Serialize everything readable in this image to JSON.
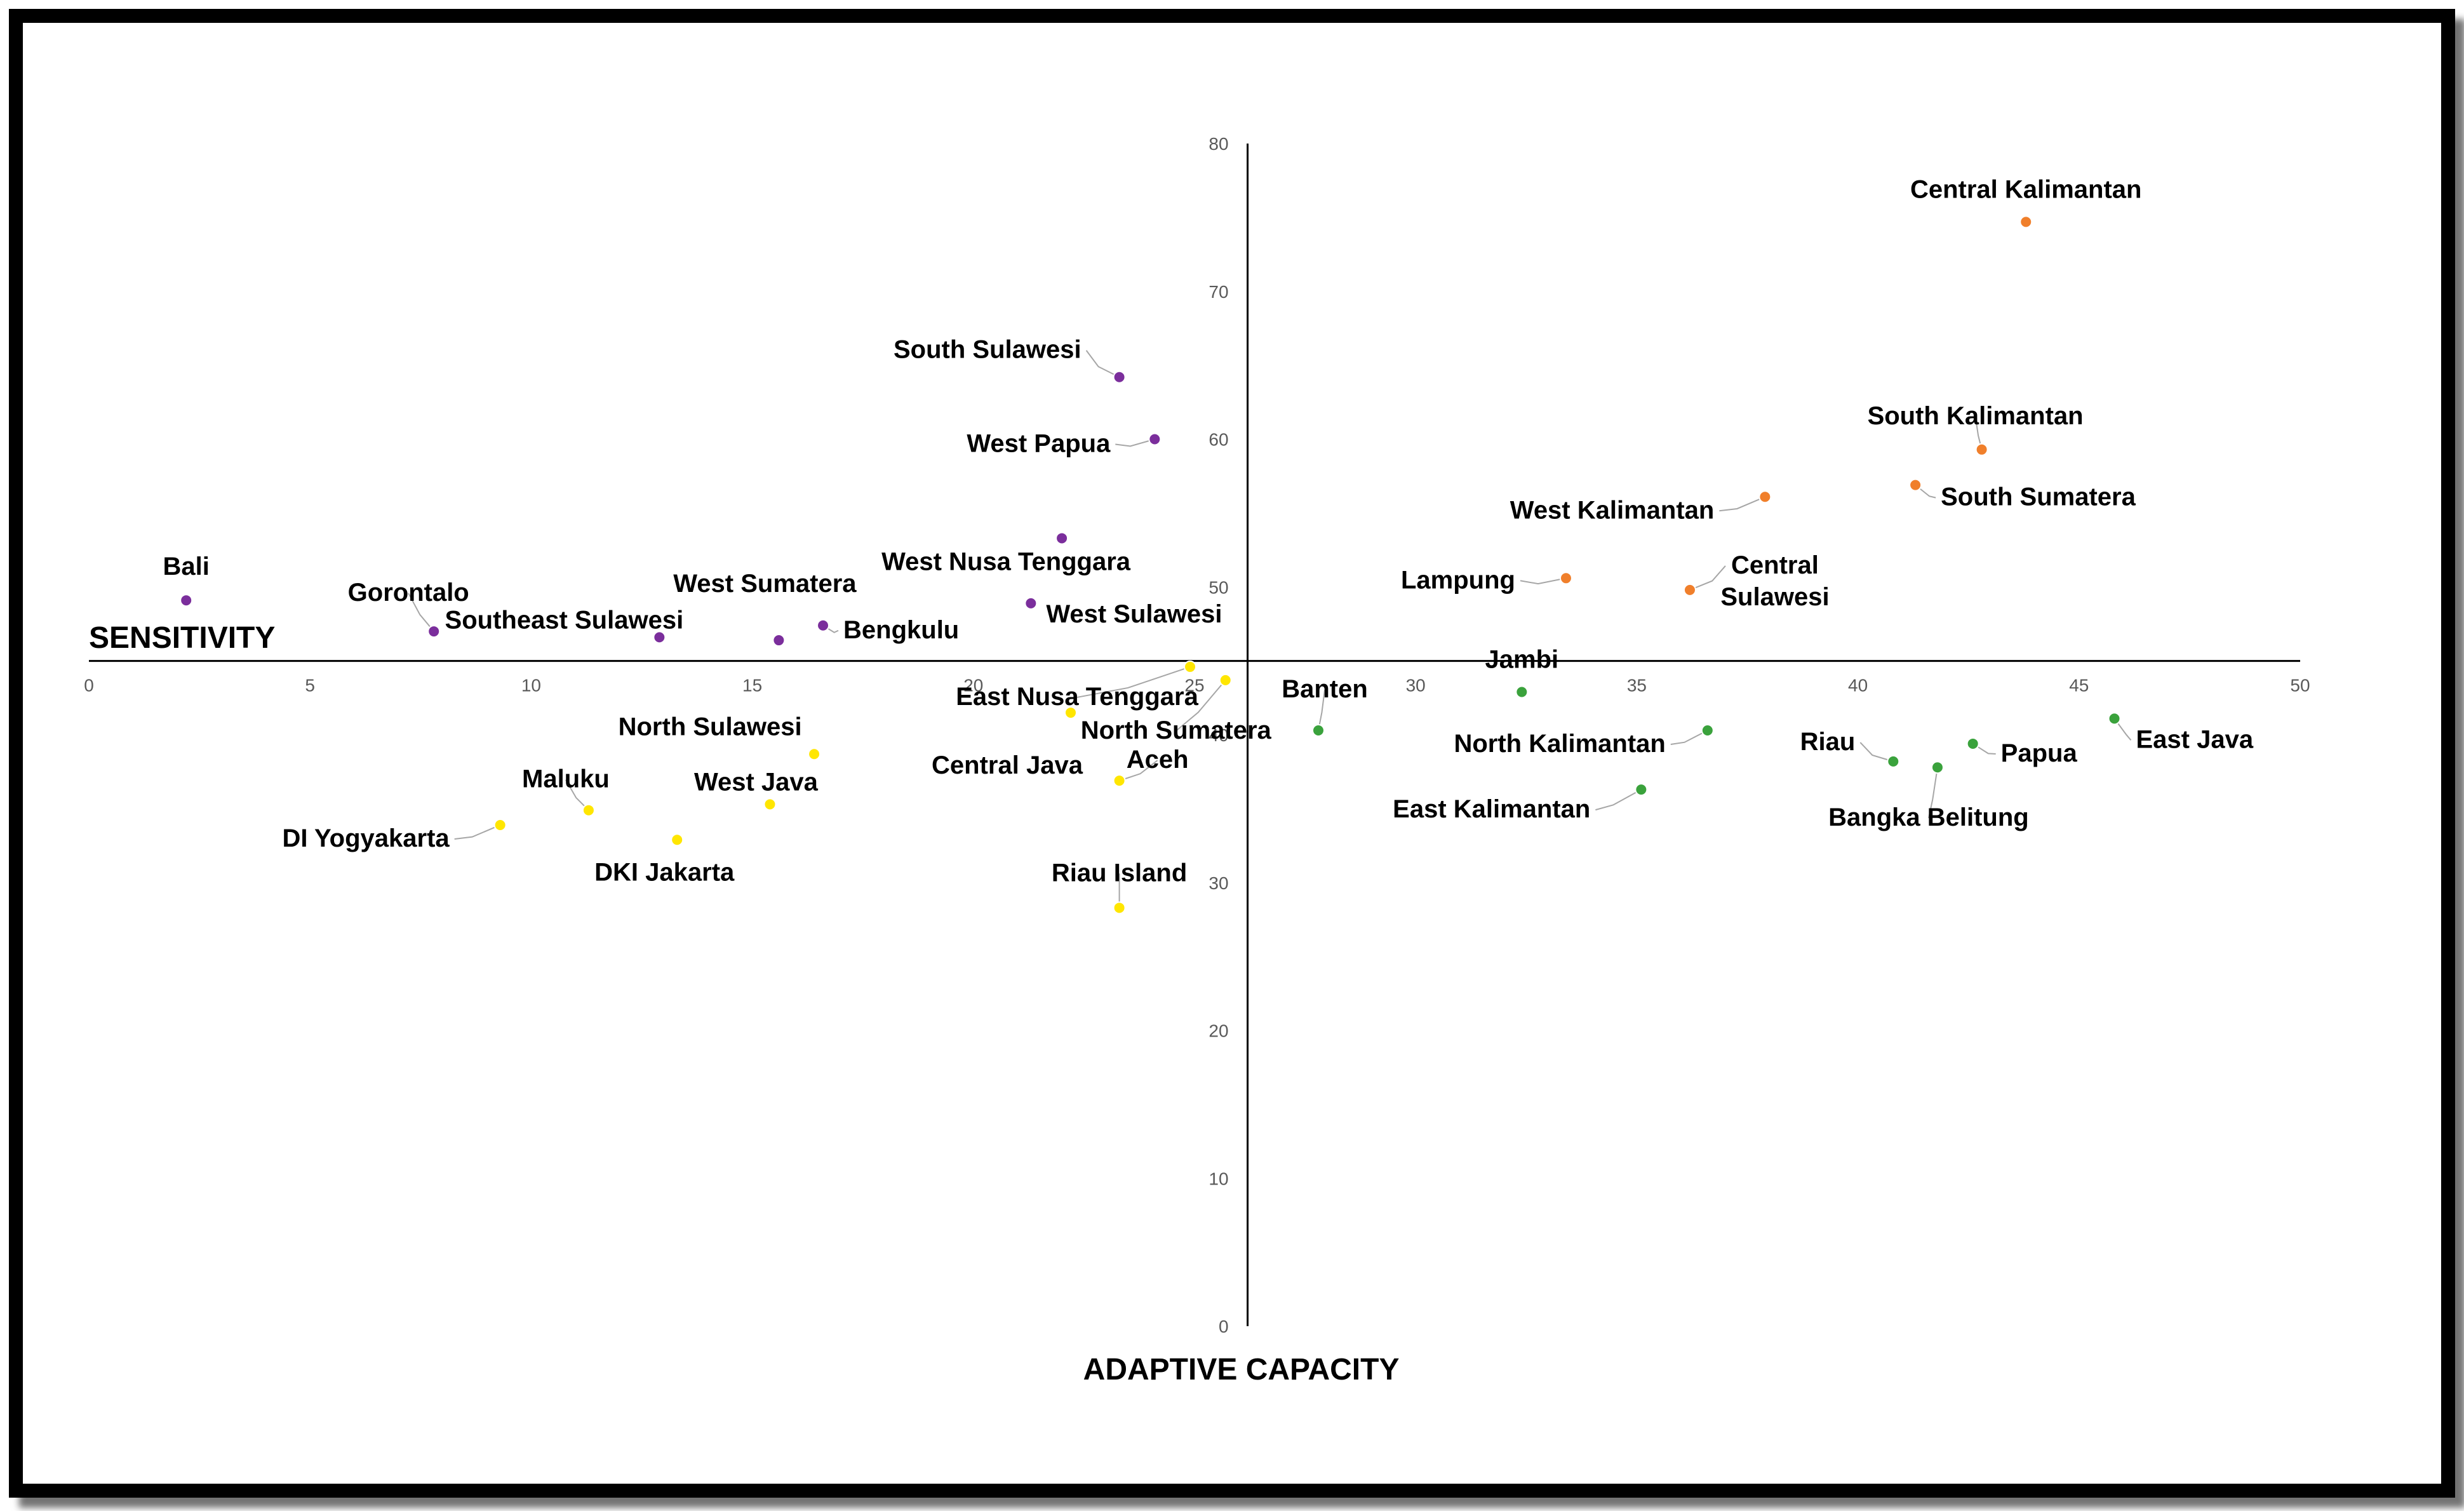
{
  "chart_data": {
    "type": "scatter",
    "title": "",
    "xlabel": "ADAPTIVE CAPACITY",
    "ylabel": "SENSITIVITY",
    "xlim": [
      0,
      50
    ],
    "ylim": [
      0,
      80
    ],
    "x_ticks": [
      "0",
      "5",
      "10",
      "15",
      "20",
      "25",
      "30",
      "35",
      "40",
      "45",
      "50"
    ],
    "y_ticks": [
      "0",
      "10",
      "20",
      "30",
      "40",
      "50",
      "60",
      "70",
      "80"
    ],
    "y_axis_at_x": 26.2,
    "x_axis_at_y": 45,
    "grid": false,
    "legend": "none",
    "colors": {
      "purple": "#7b2e9c",
      "yellow": "#ffe600",
      "orange": "#f07f2b",
      "green": "#3aa23c"
    },
    "points": [
      {
        "label": "Bali",
        "x": 2.2,
        "y": 49.1,
        "color": "purple"
      },
      {
        "label": "Gorontalo",
        "x": 7.8,
        "y": 47.0,
        "color": "purple"
      },
      {
        "label": "Southeast Sulawesi",
        "x": 12.9,
        "y": 46.6,
        "color": "purple"
      },
      {
        "label": "West Sumatera",
        "x": 15.6,
        "y": 46.4,
        "color": "purple"
      },
      {
        "label": "Bengkulu",
        "x": 16.6,
        "y": 47.4,
        "color": "purple"
      },
      {
        "label": "West Nusa Tenggara",
        "x": 22.0,
        "y": 53.3,
        "color": "purple"
      },
      {
        "label": "West Sulawesi",
        "x": 21.3,
        "y": 48.9,
        "color": "purple"
      },
      {
        "label": "South Sulawesi",
        "x": 23.3,
        "y": 64.2,
        "color": "purple"
      },
      {
        "label": "West Papua",
        "x": 24.1,
        "y": 60.0,
        "color": "purple"
      },
      {
        "label": "East Nusa Tenggara",
        "x": 24.9,
        "y": 44.6,
        "color": "yellow"
      },
      {
        "label": "North Sumatera",
        "x": 25.7,
        "y": 43.7,
        "color": "yellow"
      },
      {
        "label": "North Sulawesi",
        "x": 16.4,
        "y": 38.7,
        "color": "yellow"
      },
      {
        "label": "West Java",
        "x": 15.4,
        "y": 35.3,
        "color": "yellow"
      },
      {
        "label": "Central Java",
        "x": 22.2,
        "y": 41.5,
        "color": "yellow"
      },
      {
        "label": "Aceh",
        "x": 23.3,
        "y": 36.9,
        "color": "yellow"
      },
      {
        "label": "Maluku",
        "x": 11.3,
        "y": 34.9,
        "color": "yellow"
      },
      {
        "label": "DI Yogyakarta",
        "x": 9.3,
        "y": 33.9,
        "color": "yellow"
      },
      {
        "label": "DKI Jakarta",
        "x": 13.3,
        "y": 32.9,
        "color": "yellow"
      },
      {
        "label": "Riau Island",
        "x": 23.3,
        "y": 28.3,
        "color": "yellow"
      },
      {
        "label": "Central Kalimantan",
        "x": 43.8,
        "y": 74.7,
        "color": "orange"
      },
      {
        "label": "South Kalimantan",
        "x": 42.8,
        "y": 59.3,
        "color": "orange"
      },
      {
        "label": "South Sumatera",
        "x": 41.3,
        "y": 56.9,
        "color": "orange"
      },
      {
        "label": "West Kalimantan",
        "x": 37.9,
        "y": 56.1,
        "color": "orange"
      },
      {
        "label": "Lampung",
        "x": 33.4,
        "y": 50.6,
        "color": "orange"
      },
      {
        "label": "Central Sulawesi",
        "x": 36.2,
        "y": 49.8,
        "color": "orange"
      },
      {
        "label": "Jambi",
        "x": 32.4,
        "y": 42.9,
        "color": "green"
      },
      {
        "label": "Banten",
        "x": 27.8,
        "y": 40.3,
        "color": "green"
      },
      {
        "label": "North Kalimantan",
        "x": 36.6,
        "y": 40.3,
        "color": "green"
      },
      {
        "label": "East Kalimantan",
        "x": 35.1,
        "y": 36.3,
        "color": "green"
      },
      {
        "label": "Riau",
        "x": 40.8,
        "y": 38.2,
        "color": "green"
      },
      {
        "label": "Bangka Belitung",
        "x": 41.8,
        "y": 37.8,
        "color": "green"
      },
      {
        "label": "Papua",
        "x": 42.6,
        "y": 39.4,
        "color": "green"
      },
      {
        "label": "East Java",
        "x": 45.8,
        "y": 41.1,
        "color": "green"
      }
    ]
  }
}
